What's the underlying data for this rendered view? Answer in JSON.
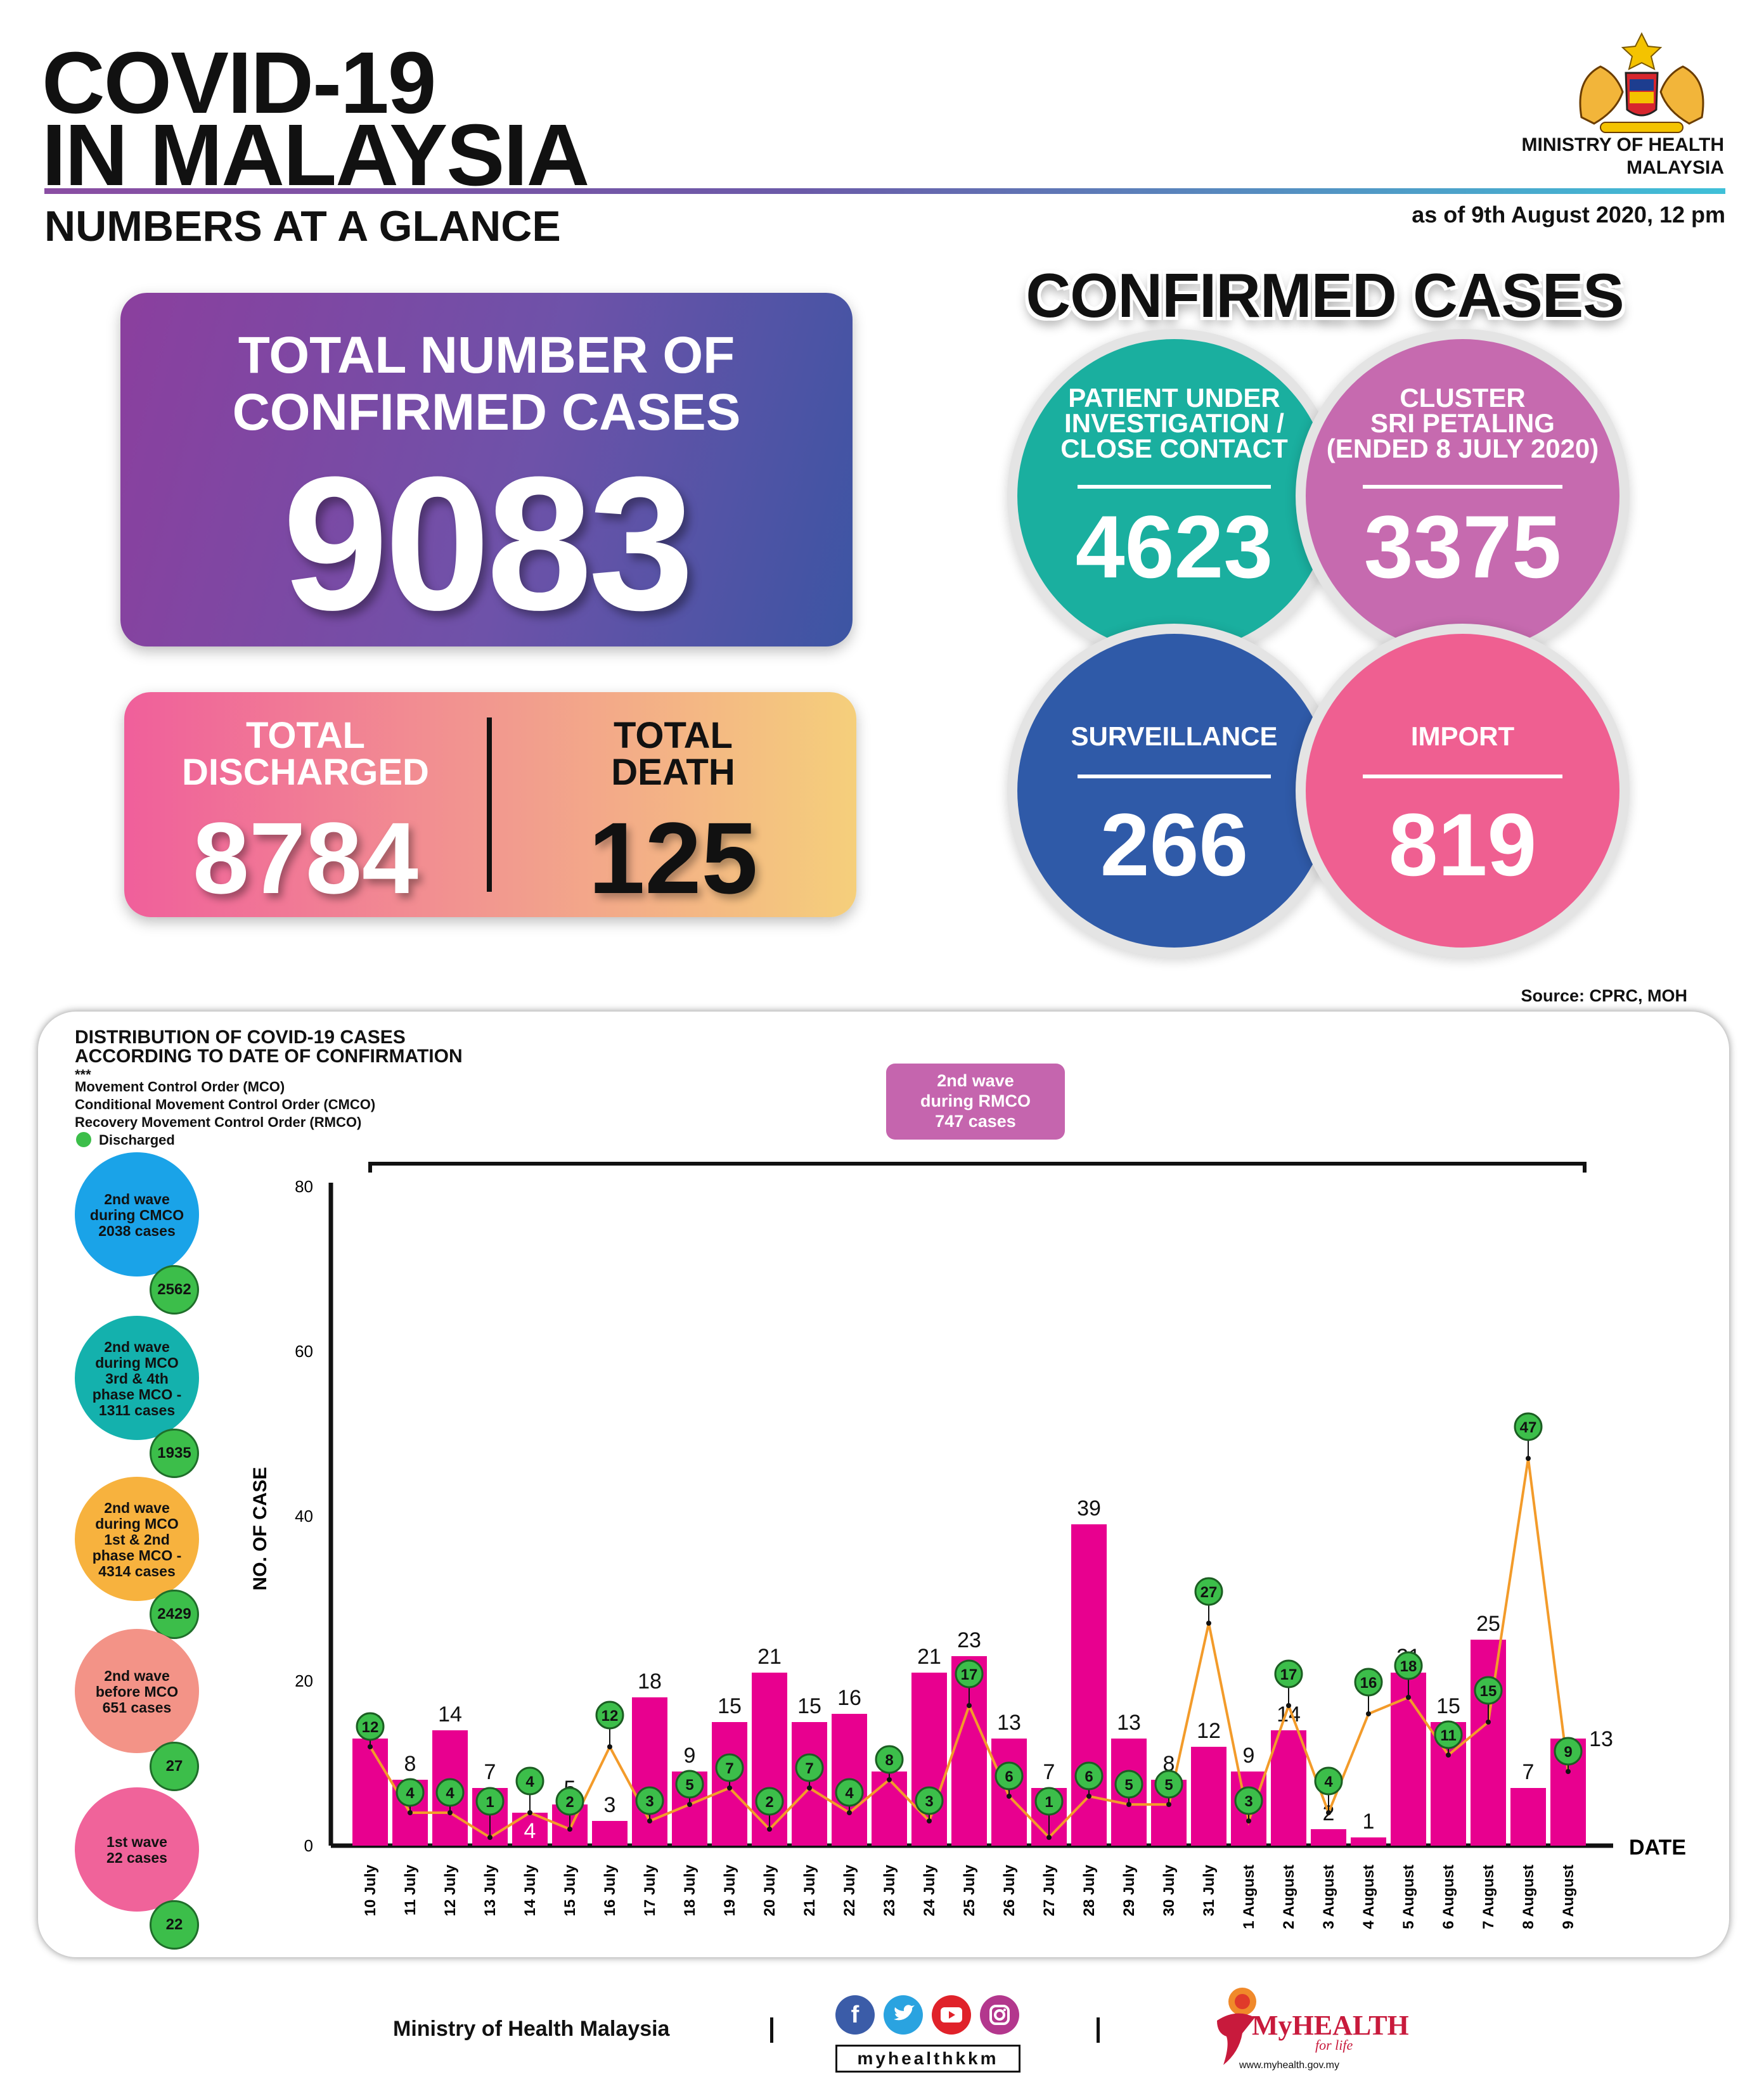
{
  "header": {
    "title_line1": "COVID-19",
    "title_line2": "IN MALAYSIA",
    "subtitle": "NUMBERS AT A GLANCE",
    "ministry_line1": "MINISTRY OF HEALTH",
    "ministry_line2": "MALAYSIA",
    "as_of": "as of 9th August 2020, 12 pm"
  },
  "total": {
    "label_line1": "TOTAL NUMBER OF",
    "label_line2": "CONFIRMED CASES",
    "value": "9083"
  },
  "discharged": {
    "label_line1": "TOTAL",
    "label_line2": "DISCHARGED",
    "value": "8784"
  },
  "death": {
    "label_line1": "TOTAL",
    "label_line2": "DEATH",
    "value": "125"
  },
  "confirmed": {
    "title": "CONFIRMED CASES",
    "pui": {
      "line1": "PATIENT UNDER",
      "line2": "INVESTIGATION /",
      "line3": "CLOSE CONTACT",
      "value": "4623",
      "color": "#1aaf9f"
    },
    "cluster": {
      "line1": "CLUSTER",
      "line2": "SRI PETALING",
      "line3": "(ENDED 8 JULY 2020)",
      "value": "3375",
      "color": "#c66aaf"
    },
    "surveillance": {
      "label": "SURVEILLANCE",
      "value": "266",
      "color": "#2f5aa8"
    },
    "import": {
      "label": "IMPORT",
      "value": "819",
      "color": "#ef5f91"
    }
  },
  "source": "Source: CPRC, MOH",
  "panel": {
    "title_line1": "DISTRIBUTION OF COVID-19 CASES",
    "title_line2": "ACCORDING TO DATE OF CONFIRMATION",
    "asterisks": "***",
    "legend_mco": "Movement Control Order (MCO)",
    "legend_cmco": "Conditional Movement Control Order (CMCO)",
    "legend_rmco": "Recovery Movement Control Order (RMCO)",
    "legend_discharged": "Discharged",
    "rmco_box_line1": "2nd wave",
    "rmco_box_line2": "during RMCO",
    "rmco_box_line3": "747 cases",
    "waves": [
      {
        "lines": [
          "2nd wave",
          "during CMCO",
          "2038 cases"
        ],
        "discharged": "2562",
        "color": "#1aa3e8"
      },
      {
        "lines": [
          "2nd wave",
          "during MCO",
          "3rd & 4th",
          "phase MCO -",
          "1311 cases"
        ],
        "discharged": "1935",
        "color": "#14b1ad"
      },
      {
        "lines": [
          "2nd wave",
          "during MCO",
          "1st & 2nd",
          "phase MCO -",
          "4314 cases"
        ],
        "discharged": "2429",
        "color": "#f7b23e"
      },
      {
        "lines": [
          "2nd wave",
          "before MCO",
          "651 cases"
        ],
        "discharged": "27",
        "color": "#f39387"
      },
      {
        "lines": [
          "1st wave",
          "22 cases"
        ],
        "discharged": "22",
        "color": "#f0639a"
      }
    ]
  },
  "chart_data": {
    "type": "bar",
    "ylabel": "NO. OF CASE",
    "xlabel": "DATE",
    "ylim": [
      0,
      80
    ],
    "yticks": [
      "0",
      "20",
      "40",
      "60",
      "80"
    ],
    "categories": [
      "10 July",
      "11 July",
      "12 July",
      "13 July",
      "14 July",
      "15 July",
      "16 July",
      "17 July",
      "18 July",
      "19 July",
      "20 July",
      "21 July",
      "22 July",
      "23 July",
      "24 July",
      "25 July",
      "26 July",
      "27 July",
      "28 July",
      "29 July",
      "30 July",
      "31 July",
      "1 August",
      "2 August",
      "3 August",
      "4 August",
      "5 August",
      "6 August",
      "7 August",
      "8 August",
      "9 August"
    ],
    "series": [
      {
        "values": [
          13,
          8,
          14,
          7,
          4,
          5,
          3,
          18,
          9,
          15,
          21,
          15,
          16,
          9,
          21,
          23,
          13,
          7,
          39,
          13,
          8,
          12,
          9,
          14,
          2,
          1,
          21,
          15,
          25,
          7,
          13
        ],
        "color": "#e8008f"
      },
      {
        "name": "Discharged",
        "values": [
          12,
          4,
          4,
          1,
          4,
          2,
          12,
          3,
          5,
          7,
          2,
          7,
          4,
          8,
          3,
          17,
          6,
          1,
          6,
          5,
          5,
          27,
          3,
          17,
          4,
          16,
          18,
          11,
          15,
          47,
          9
        ],
        "color": "#f39b2a",
        "marker_color": "#3cbe4a"
      }
    ]
  },
  "footer": {
    "ministry": "Ministry of Health Malaysia",
    "handle": "myhealthkkm",
    "brand_my": "My",
    "brand_health": "HEALTH",
    "brand_tagline": "for life",
    "url": "www.myhealth.gov.my"
  }
}
